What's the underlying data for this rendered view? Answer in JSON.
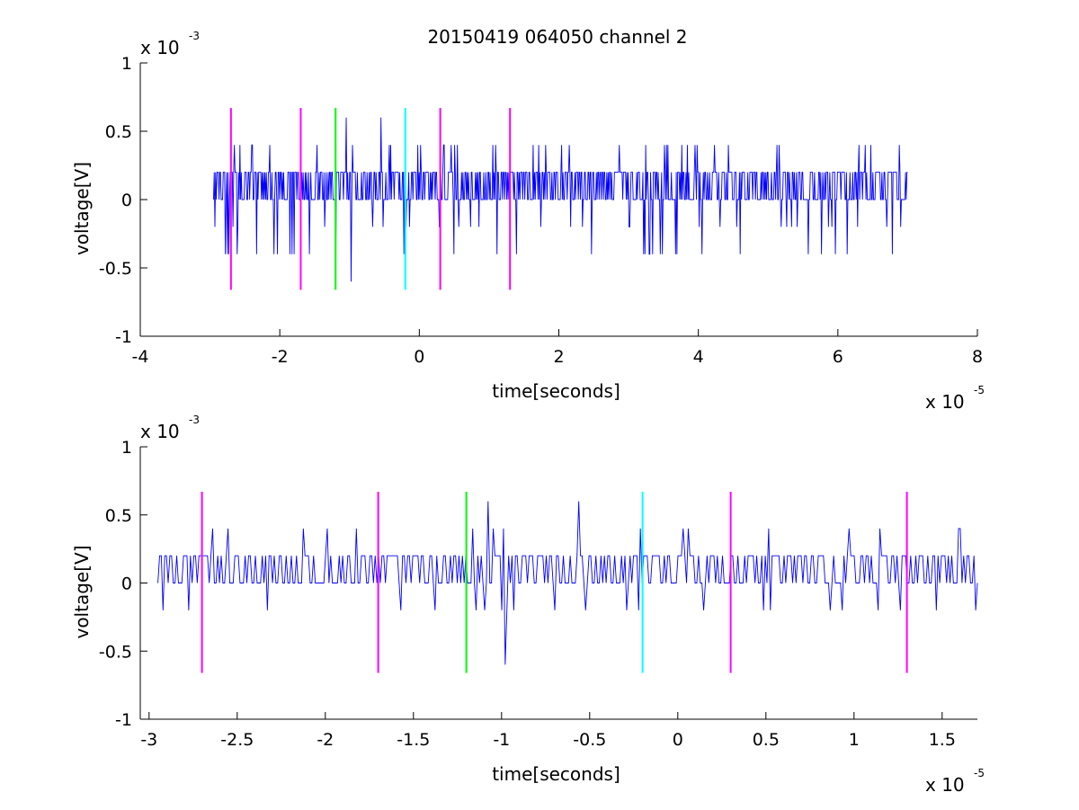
{
  "title": "20150419 064050 channel 2",
  "chart_data": [
    {
      "type": "line",
      "title": "20150419 064050 channel 2",
      "xlabel": "time[seconds]",
      "ylabel": "voltage[V]",
      "xlim": [
        -4,
        8
      ],
      "ylim": [
        -1,
        1
      ],
      "x_scale": {
        "base": "x 10",
        "exponent": "-5"
      },
      "y_scale": {
        "base": "x 10",
        "exponent": "-3"
      },
      "x_ticks": [
        {
          "value": -4,
          "label": "-4"
        },
        {
          "value": -2,
          "label": "-2"
        },
        {
          "value": 0,
          "label": "0"
        },
        {
          "value": 2,
          "label": "2"
        },
        {
          "value": 4,
          "label": "4"
        },
        {
          "value": 6,
          "label": "6"
        },
        {
          "value": 8,
          "label": "8"
        }
      ],
      "y_ticks": [
        {
          "value": -1,
          "label": "-1"
        },
        {
          "value": -0.5,
          "label": "-0.5"
        },
        {
          "value": 0,
          "label": "0"
        },
        {
          "value": 0.5,
          "label": "0.5"
        },
        {
          "value": 1,
          "label": "1"
        }
      ],
      "grid": false,
      "series": [
        {
          "color": "#0000ff",
          "signal": {
            "x_start": -2.95,
            "x_end": 7.0,
            "levels": [
              -0.4,
              -0.2,
              0,
              0.2,
              0.4,
              0.6
            ],
            "typical": [
              0,
              0.2
            ],
            "peaks": [
              {
                "x": -0.98,
                "y": -0.6
              },
              {
                "x": -0.55,
                "y": 0.6
              },
              {
                "x": 3.22,
                "y": -0.4
              },
              {
                "x": -1.05,
                "y": 0.6
              },
              {
                "x": -2.93,
                "y": -0.2
              }
            ]
          }
        }
      ],
      "markers": [
        {
          "x": -2.7,
          "y_min": -0.66,
          "y_max": 0.67,
          "color": "#ff00ff"
        },
        {
          "x": -1.7,
          "y_min": -0.66,
          "y_max": 0.67,
          "color": "#ff00ff"
        },
        {
          "x": -1.2,
          "y_min": -0.66,
          "y_max": 0.67,
          "color": "#00ff00"
        },
        {
          "x": -0.2,
          "y_min": -0.66,
          "y_max": 0.67,
          "color": "#00ffff"
        },
        {
          "x": 0.3,
          "y_min": -0.66,
          "y_max": 0.67,
          "color": "#ff00ff"
        },
        {
          "x": 1.3,
          "y_min": -0.66,
          "y_max": 0.67,
          "color": "#ff00ff"
        }
      ]
    },
    {
      "type": "line",
      "xlabel": "time[seconds]",
      "ylabel": "voltage[V]",
      "xlim": [
        -3.05,
        1.7
      ],
      "ylim": [
        -1,
        1
      ],
      "x_scale": {
        "base": "x 10",
        "exponent": "-5"
      },
      "y_scale": {
        "base": "x 10",
        "exponent": "-3"
      },
      "x_ticks": [
        {
          "value": -3,
          "label": "-3"
        },
        {
          "value": -2.5,
          "label": "-2.5"
        },
        {
          "value": -2,
          "label": "-2"
        },
        {
          "value": -1.5,
          "label": "-1.5"
        },
        {
          "value": -1,
          "label": "-1"
        },
        {
          "value": -0.5,
          "label": "-0.5"
        },
        {
          "value": 0,
          "label": "0"
        },
        {
          "value": 0.5,
          "label": "0.5"
        },
        {
          "value": 1,
          "label": "1"
        },
        {
          "value": 1.5,
          "label": "1.5"
        }
      ],
      "y_ticks": [
        {
          "value": -1,
          "label": "-1"
        },
        {
          "value": -0.5,
          "label": "-0.5"
        },
        {
          "value": 0,
          "label": "0"
        },
        {
          "value": 0.5,
          "label": "0.5"
        },
        {
          "value": 1,
          "label": "1"
        }
      ],
      "grid": false,
      "series": [
        {
          "color": "#0000ff",
          "signal": {
            "x_start": -2.95,
            "x_end": 1.7,
            "levels": [
              -0.2,
              0,
              0.2,
              0.4,
              0.6
            ],
            "typical": [
              0,
              0.2
            ],
            "peaks": [
              {
                "x": -0.98,
                "y": -0.6
              },
              {
                "x": -0.56,
                "y": 0.6
              },
              {
                "x": -1.08,
                "y": 0.6
              },
              {
                "x": -2.92,
                "y": -0.2
              }
            ]
          }
        }
      ],
      "markers": [
        {
          "x": -2.7,
          "y_min": -0.66,
          "y_max": 0.67,
          "color": "#ff00ff"
        },
        {
          "x": -1.7,
          "y_min": -0.66,
          "y_max": 0.67,
          "color": "#ff00ff"
        },
        {
          "x": -1.2,
          "y_min": -0.66,
          "y_max": 0.67,
          "color": "#00ff00"
        },
        {
          "x": -0.2,
          "y_min": -0.66,
          "y_max": 0.67,
          "color": "#00ffff"
        },
        {
          "x": 0.3,
          "y_min": -0.66,
          "y_max": 0.67,
          "color": "#ff00ff"
        },
        {
          "x": 1.3,
          "y_min": -0.66,
          "y_max": 0.67,
          "color": "#ff00ff"
        }
      ]
    }
  ]
}
